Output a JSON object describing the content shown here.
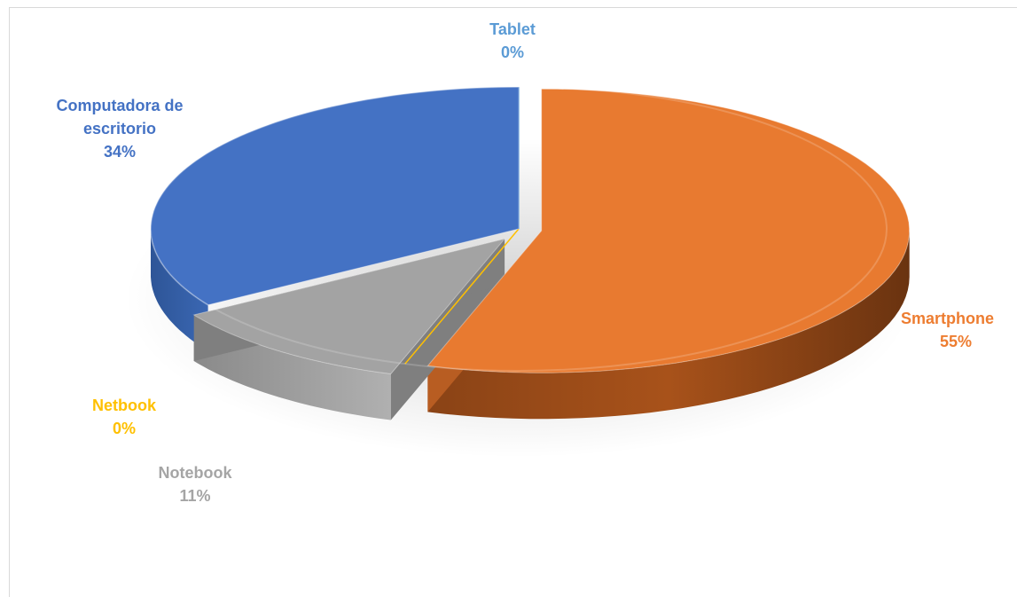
{
  "chart_data": {
    "type": "pie",
    "title": "",
    "series": [
      {
        "values": [
          0,
          55,
          0,
          11,
          34
        ]
      }
    ],
    "categories": [
      "Tablet",
      "Smartphone",
      "Netbook",
      "Notebook",
      "Computadora de escritorio"
    ],
    "slices": [
      {
        "name": "Tablet",
        "value": 0,
        "label": "0%",
        "color": "#5b9bd5",
        "explode": false
      },
      {
        "name": "Smartphone",
        "value": 55,
        "label": "55%",
        "color": "#ed7d31",
        "explode": true
      },
      {
        "name": "Netbook",
        "value": 0,
        "label": "0%",
        "color": "#ffc000",
        "explode": false
      },
      {
        "name": "Notebook",
        "value": 11,
        "label": "11%",
        "color": "#a5a5a5",
        "explode": true
      },
      {
        "name": "Computadora de escritorio",
        "value": 34,
        "label": "34%",
        "color": "#4472c4",
        "explode": false
      }
    ],
    "style": "3d-exploded",
    "legend": "none",
    "data_labels": "category-and-percent"
  },
  "labels": {
    "tablet": {
      "name": "Tablet",
      "pct": "0%"
    },
    "smartphone": {
      "name": "Smartphone",
      "pct": "55%"
    },
    "netbook": {
      "name": "Netbook",
      "pct": "0%"
    },
    "notebook": {
      "name": "Notebook",
      "pct": "11%"
    },
    "desktop": {
      "line1": "Computadora de",
      "line2": "escritorio",
      "pct": "34%"
    }
  }
}
